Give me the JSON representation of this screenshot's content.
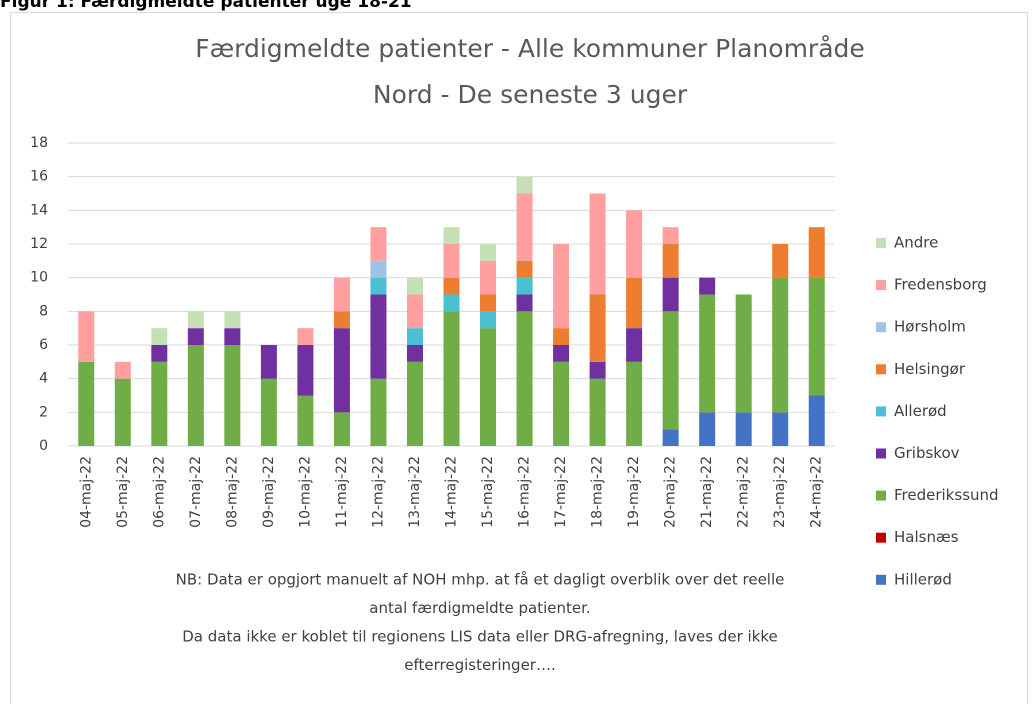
{
  "heading": "Figur 1: Færdigmeldte patienter uge 18-21",
  "chart_data": {
    "type": "stacked_bar",
    "title": [
      "Færdigmeldte patienter - Alle kommuner Planområde",
      "Nord - De seneste 3 uger"
    ],
    "categories": [
      "04-maj-22",
      "05-maj-22",
      "06-maj-22",
      "07-maj-22",
      "08-maj-22",
      "09-maj-22",
      "10-maj-22",
      "11-maj-22",
      "12-maj-22",
      "13-maj-22",
      "14-maj-22",
      "15-maj-22",
      "16-maj-22",
      "17-maj-22",
      "18-maj-22",
      "19-maj-22",
      "20-maj-22",
      "21-maj-22",
      "22-maj-22",
      "23-maj-22",
      "24-maj-22"
    ],
    "series": [
      {
        "name": "Hillerød",
        "color": "#4472c4",
        "values": [
          0,
          0,
          0,
          0,
          0,
          0,
          0,
          0,
          0,
          0,
          0,
          0,
          0,
          0,
          0,
          0,
          1,
          2,
          2,
          2,
          3
        ]
      },
      {
        "name": "Halsnæs",
        "color": "#c00000",
        "values": [
          0,
          0,
          0,
          0,
          0,
          0,
          0,
          0,
          0,
          0,
          0,
          0,
          0,
          0,
          0,
          0,
          0,
          0,
          0,
          0,
          0
        ]
      },
      {
        "name": "Frederikssund",
        "color": "#70ad47",
        "values": [
          5,
          4,
          5,
          6,
          6,
          4,
          3,
          2,
          4,
          5,
          8,
          7,
          8,
          5,
          4,
          5,
          7,
          7,
          7,
          8,
          7
        ]
      },
      {
        "name": "Gribskov",
        "color": "#7030a0",
        "values": [
          0,
          0,
          1,
          1,
          1,
          2,
          3,
          5,
          5,
          1,
          0,
          0,
          1,
          1,
          1,
          2,
          2,
          1,
          0,
          0,
          0
        ]
      },
      {
        "name": "Allerød",
        "color": "#4bc0d3",
        "values": [
          0,
          0,
          0,
          0,
          0,
          0,
          0,
          0,
          1,
          1,
          1,
          1,
          1,
          0,
          0,
          0,
          0,
          0,
          0,
          0,
          0
        ]
      },
      {
        "name": "Helsingør",
        "color": "#ed7d31",
        "values": [
          0,
          0,
          0,
          0,
          0,
          0,
          0,
          1,
          0,
          0,
          1,
          1,
          1,
          1,
          4,
          3,
          2,
          0,
          0,
          2,
          3
        ]
      },
      {
        "name": "Hørsholm",
        "color": "#9dc3e6",
        "values": [
          0,
          0,
          0,
          0,
          0,
          0,
          0,
          0,
          1,
          0,
          0,
          0,
          0,
          0,
          0,
          0,
          0,
          0,
          0,
          0,
          0
        ]
      },
      {
        "name": "Fredensborg",
        "color": "#ff9f9f",
        "values": [
          3,
          1,
          0,
          0,
          0,
          0,
          1,
          2,
          2,
          2,
          2,
          2,
          4,
          5,
          6,
          4,
          1,
          0,
          0,
          0,
          0
        ]
      },
      {
        "name": "Andre",
        "color": "#c5e0b4",
        "values": [
          0,
          0,
          1,
          1,
          1,
          0,
          0,
          0,
          0,
          1,
          1,
          1,
          1,
          0,
          0,
          0,
          0,
          0,
          0,
          0,
          0
        ]
      }
    ],
    "ylim": [
      0,
      18
    ],
    "yticks": [
      0,
      2,
      4,
      6,
      8,
      10,
      12,
      14,
      16,
      18
    ],
    "grid": true,
    "legend": "right",
    "notes": [
      "NB: Data er opgjort manuelt af NOH mhp. at få et dagligt overblik over det reelle",
      "antal færdigmeldte patienter.",
      "Da data ikke er koblet til regionens LIS data eller DRG-afregning, laves der ikke",
      "efterregisteringer…."
    ]
  }
}
